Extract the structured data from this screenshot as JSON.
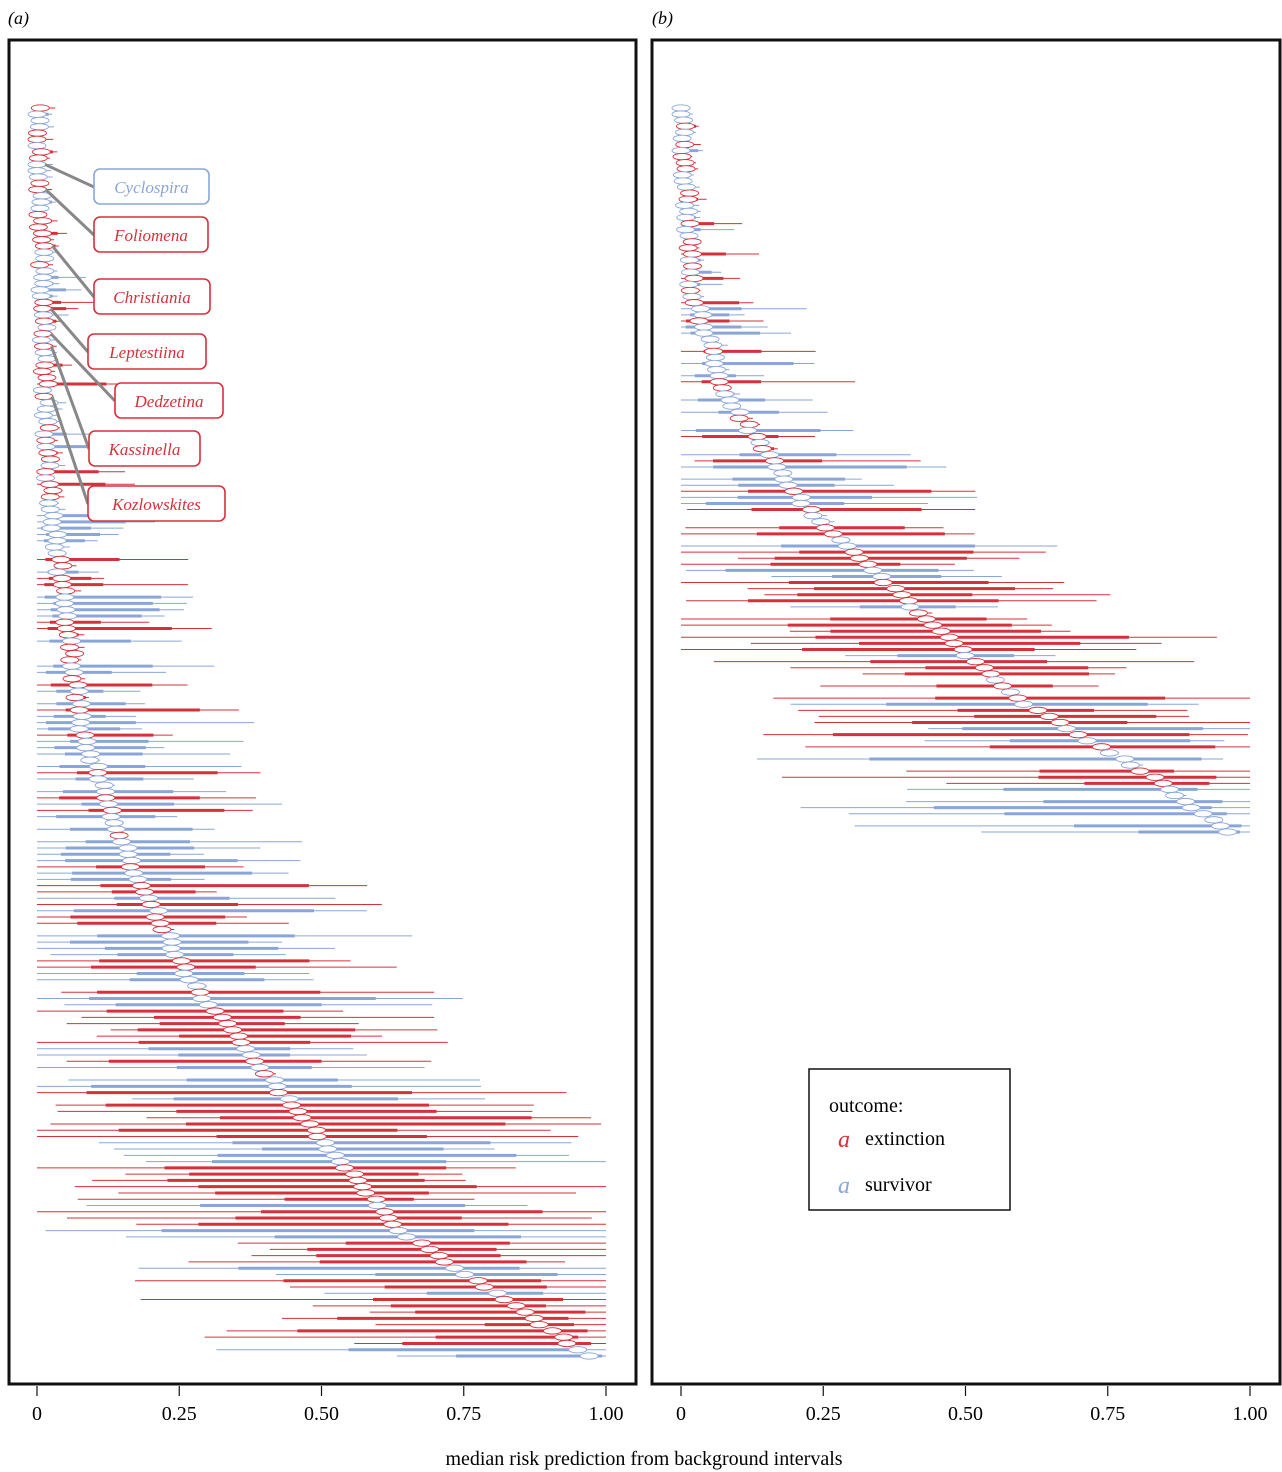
{
  "figure": {
    "xlabel": "median risk prediction from background intervals",
    "ticks": [
      0,
      0.25,
      0.5,
      0.75,
      1.0
    ],
    "tick_labels": [
      "0",
      "0.25",
      "0.50",
      "0.75",
      "1.00"
    ],
    "colors": {
      "extinction": "#d6303a",
      "survivor": "#8aa6d8",
      "frame": "#111111",
      "callout_line": "#888888"
    }
  },
  "panel_a": {
    "label": "(a)"
  },
  "panel_b": {
    "label": "(b)"
  },
  "legend": {
    "title": "outcome:",
    "glyph": "a",
    "items": [
      {
        "label": "extinction",
        "color": "#d6303a"
      },
      {
        "label": "survivor",
        "color": "#8aa6d8"
      }
    ]
  },
  "callouts": [
    {
      "name": "Cyclospira",
      "outcome": "survivor",
      "row": 9
    },
    {
      "name": "Foliomena",
      "outcome": "extinction",
      "row": 13
    },
    {
      "name": "Christiania",
      "outcome": "extinction",
      "row": 22
    },
    {
      "name": "Leptestiina",
      "outcome": "extinction",
      "row": 32
    },
    {
      "name": "Dedzetina",
      "outcome": "extinction",
      "row": 36
    },
    {
      "name": "Kassinella",
      "outcome": "extinction",
      "row": 38
    },
    {
      "name": "Kozlowskites",
      "outcome": "extinction",
      "row": 46
    }
  ],
  "chart_data": [
    {
      "type": "interval-dot",
      "panel": "(a)",
      "title": "",
      "xlabel": "median risk prediction from background intervals",
      "xlim": [
        0,
        1
      ],
      "n_taxa": 200,
      "legend": [
        "extinction",
        "survivor"
      ],
      "medians_profile": {
        "rank_fraction": [
          0,
          0.3,
          0.5,
          0.6,
          0.7,
          0.8,
          0.9,
          1.0
        ],
        "median": [
          0,
          0.02,
          0.08,
          0.16,
          0.27,
          0.45,
          0.64,
          0.97
        ]
      },
      "extinction_share": 0.5
    },
    {
      "type": "interval-dot",
      "panel": "(b)",
      "title": "",
      "xlabel": "median risk prediction from background intervals",
      "xlim": [
        0,
        1
      ],
      "n_taxa": 120,
      "legend": [
        "extinction",
        "survivor"
      ],
      "medians_profile": {
        "rank_fraction": [
          0,
          0.25,
          0.4,
          0.55,
          0.7,
          0.82,
          0.92,
          1.0
        ],
        "median": [
          0,
          0.02,
          0.08,
          0.22,
          0.42,
          0.6,
          0.82,
          0.96
        ]
      },
      "extinction_share": 0.45
    }
  ]
}
